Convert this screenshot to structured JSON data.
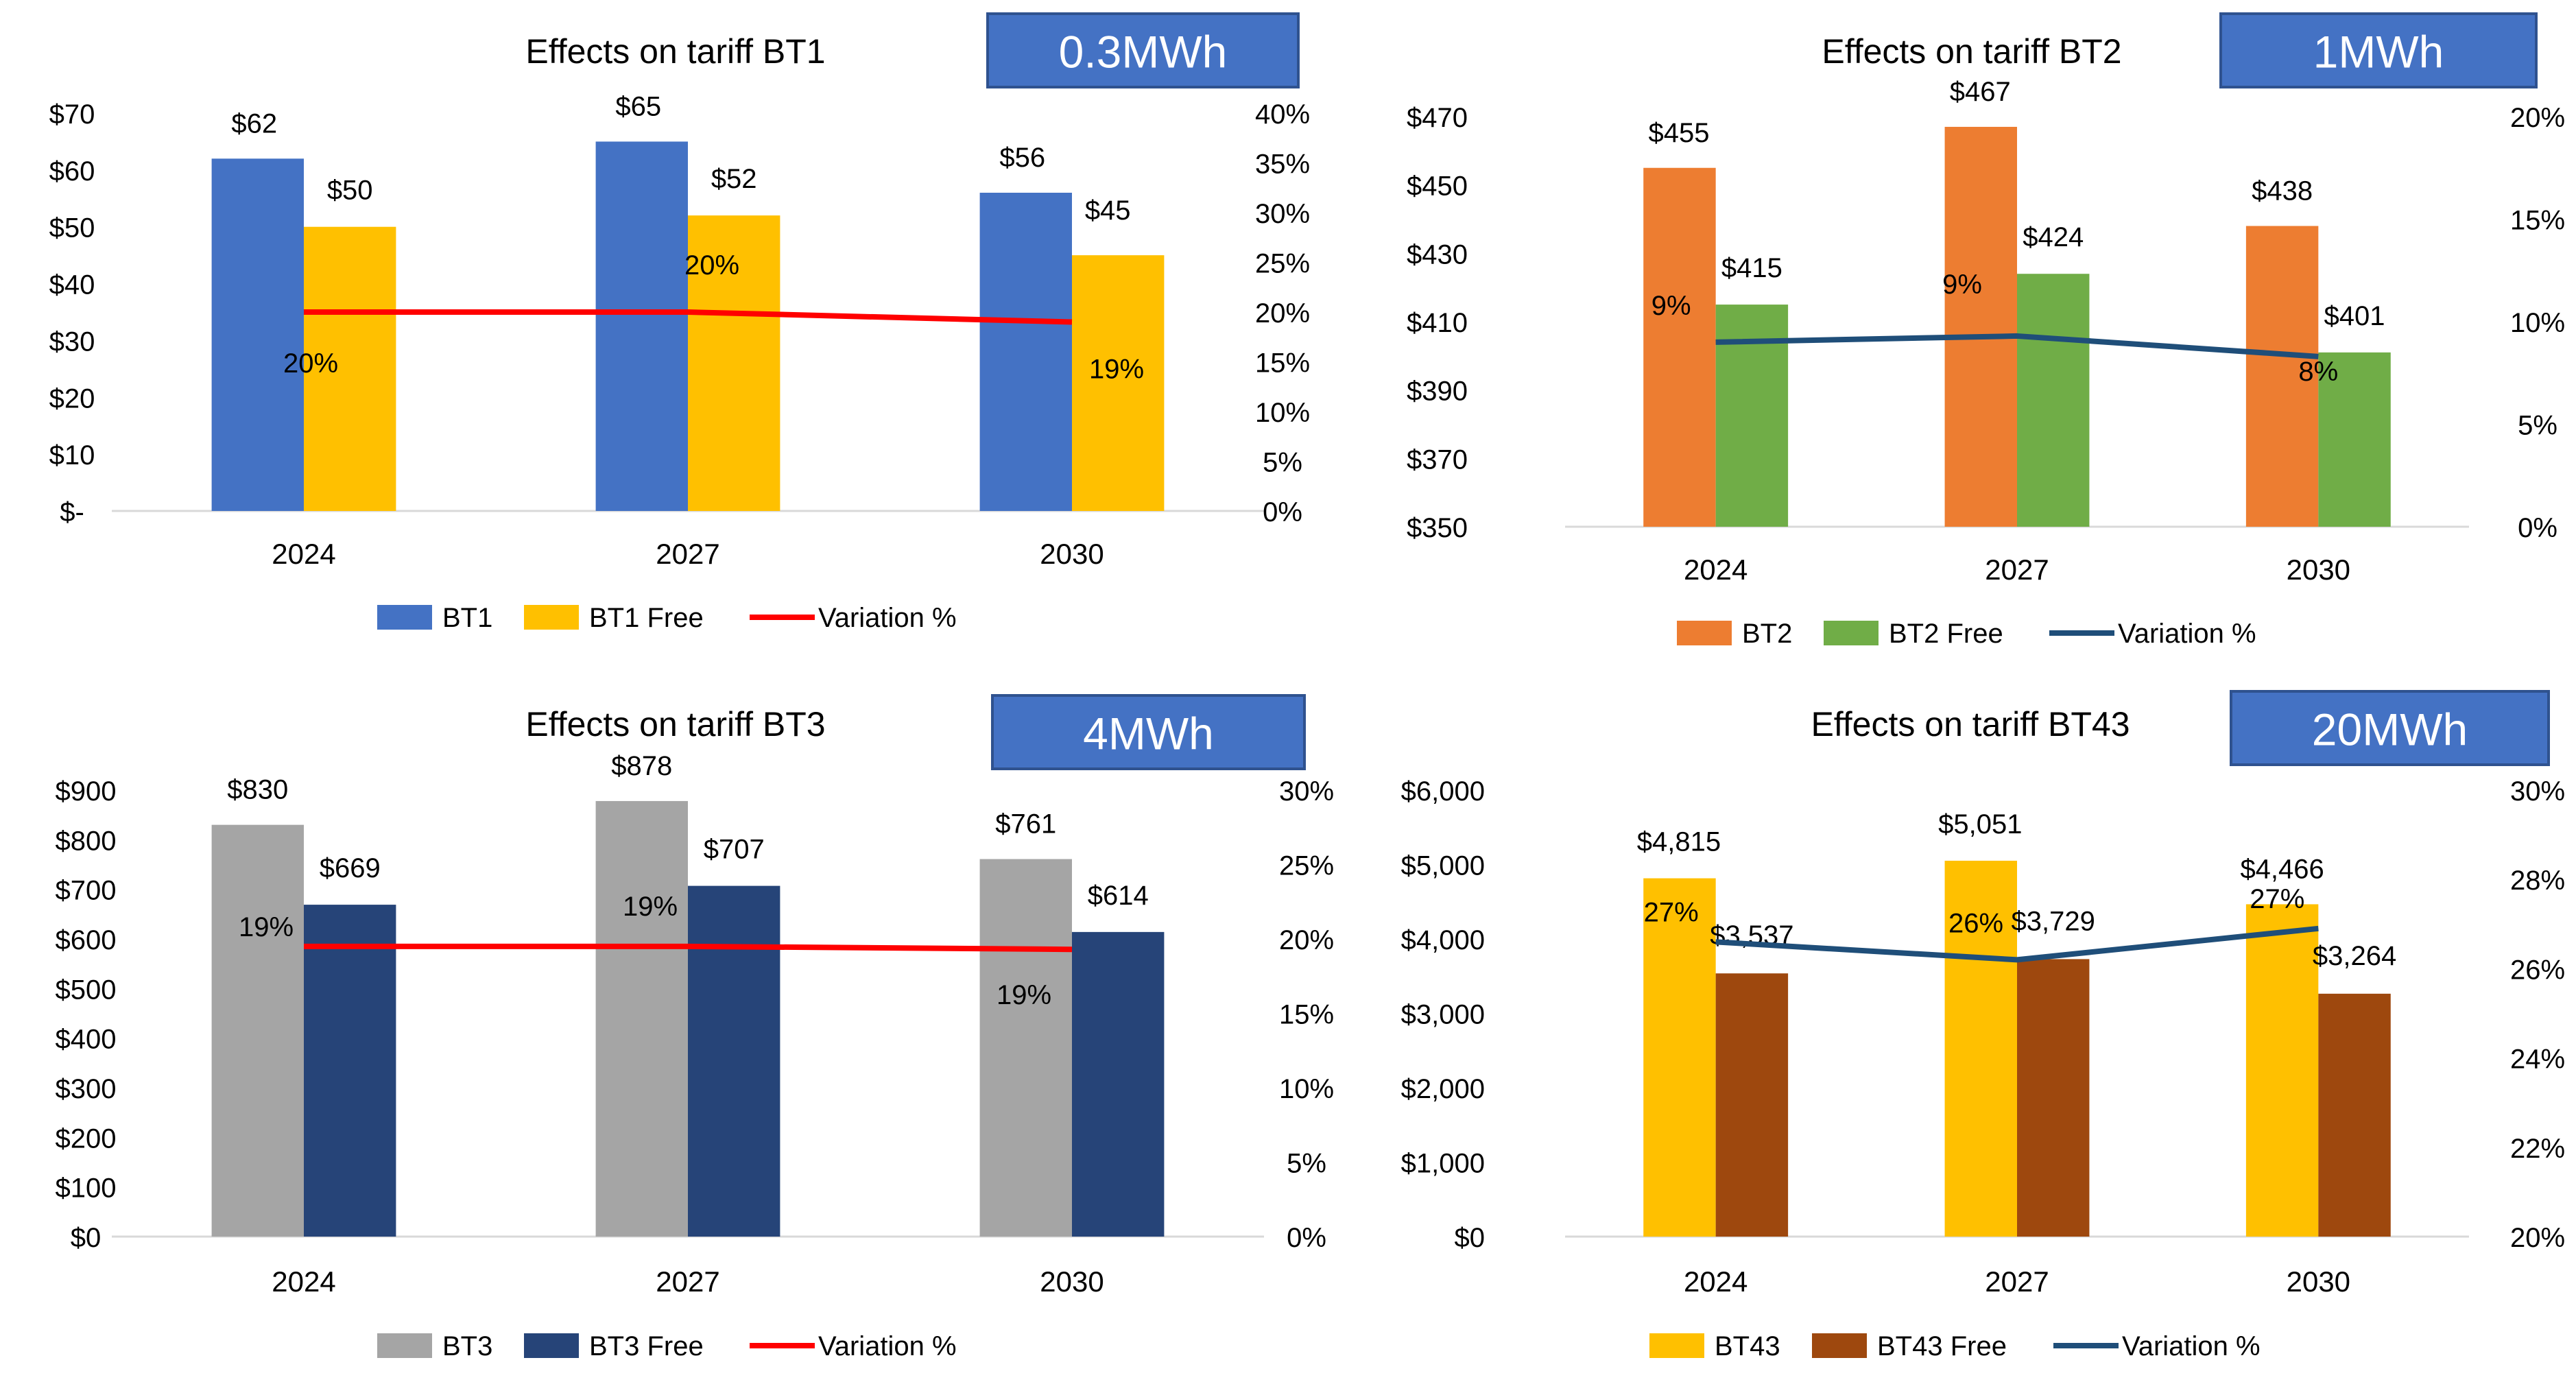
{
  "chart_data": [
    {
      "id": "bt1",
      "type": "bar",
      "title": "Effects on tariff BT1",
      "badge": "0.3MWh",
      "categories": [
        "2024",
        "2027",
        "2030"
      ],
      "series": [
        {
          "name": "BT1",
          "values": [
            62,
            65,
            56
          ],
          "labels": [
            "$62",
            "$65",
            "$56"
          ],
          "color": "#4472C4"
        },
        {
          "name": "BT1 Free",
          "values": [
            50,
            52,
            45
          ],
          "labels": [
            "$50",
            "$52",
            "$45"
          ],
          "color": "#FFC000"
        }
      ],
      "line": {
        "name": "Variation %",
        "values": [
          0.2,
          0.2,
          0.19
        ],
        "labels": [
          "20%",
          "20%",
          "19%"
        ],
        "color": "#FF0000"
      },
      "y_left": {
        "min": 0,
        "max": 70,
        "ticks": [
          0,
          10,
          20,
          30,
          40,
          50,
          60,
          70
        ],
        "tick_labels": [
          "$-",
          "$10",
          "$20",
          "$30",
          "$40",
          "$50",
          "$60",
          "$70"
        ]
      },
      "y_right": {
        "min": 0,
        "max": 0.4,
        "ticks": [
          0,
          0.05,
          0.1,
          0.15,
          0.2,
          0.25,
          0.3,
          0.35,
          0.4
        ],
        "tick_labels": [
          "0%",
          "5%",
          "10%",
          "15%",
          "20%",
          "25%",
          "30%",
          "35%",
          "40%"
        ]
      },
      "legend_position": "bottom"
    },
    {
      "id": "bt2",
      "type": "bar",
      "title": "Effects on tariff BT2",
      "badge": "1MWh",
      "categories": [
        "2024",
        "2027",
        "2030"
      ],
      "series": [
        {
          "name": "BT2",
          "values": [
            455,
            467,
            438
          ],
          "labels": [
            "$455",
            "$467",
            "$438"
          ],
          "color": "#ED7D31"
        },
        {
          "name": "BT2 Free",
          "values": [
            415,
            424,
            401
          ],
          "labels": [
            "$415",
            "$424",
            "$401"
          ],
          "color": "#70AD47"
        }
      ],
      "line": {
        "name": "Variation %",
        "values": [
          0.09,
          0.093,
          0.083
        ],
        "labels": [
          "9%",
          "9%",
          "8%"
        ],
        "color": "#1F4E79"
      },
      "y_left": {
        "min": 350,
        "max": 470,
        "ticks": [
          350,
          370,
          390,
          410,
          430,
          450,
          470
        ],
        "tick_labels": [
          "$350",
          "$370",
          "$390",
          "$410",
          "$430",
          "$450",
          "$470"
        ]
      },
      "y_right": {
        "min": 0,
        "max": 0.2,
        "ticks": [
          0,
          0.05,
          0.1,
          0.15,
          0.2
        ],
        "tick_labels": [
          "0%",
          "5%",
          "10%",
          "15%",
          "20%"
        ]
      },
      "legend_position": "bottom"
    },
    {
      "id": "bt3",
      "type": "bar",
      "title": "Effects on tariff BT3",
      "badge": "4MWh",
      "categories": [
        "2024",
        "2027",
        "2030"
      ],
      "series": [
        {
          "name": "BT3",
          "values": [
            830,
            878,
            761
          ],
          "labels": [
            "$830",
            "$878",
            "$761"
          ],
          "color": "#A5A5A5"
        },
        {
          "name": "BT3 Free",
          "values": [
            669,
            707,
            614
          ],
          "labels": [
            "$669",
            "$707",
            "$614"
          ],
          "color": "#264478"
        }
      ],
      "line": {
        "name": "Variation %",
        "values": [
          0.195,
          0.195,
          0.193
        ],
        "labels": [
          "19%",
          "19%",
          "19%"
        ],
        "color": "#FF0000"
      },
      "y_left": {
        "min": 0,
        "max": 900,
        "ticks": [
          0,
          100,
          200,
          300,
          400,
          500,
          600,
          700,
          800,
          900
        ],
        "tick_labels": [
          "$0",
          "$100",
          "$200",
          "$300",
          "$400",
          "$500",
          "$600",
          "$700",
          "$800",
          "$900"
        ]
      },
      "y_right": {
        "min": 0,
        "max": 0.3,
        "ticks": [
          0,
          0.05,
          0.1,
          0.15,
          0.2,
          0.25,
          0.3
        ],
        "tick_labels": [
          "0%",
          "5%",
          "10%",
          "15%",
          "20%",
          "25%",
          "30%"
        ]
      },
      "legend_position": "bottom"
    },
    {
      "id": "bt43",
      "type": "bar",
      "title": "Effects on tariff BT43",
      "badge": "20MWh",
      "categories": [
        "2024",
        "2027",
        "2030"
      ],
      "series": [
        {
          "name": "BT43",
          "values": [
            4815,
            5051,
            4466
          ],
          "labels": [
            "$4,815",
            "$5,051",
            "$4,466"
          ],
          "color": "#FFC000"
        },
        {
          "name": "BT43 Free",
          "values": [
            3537,
            3729,
            3264
          ],
          "labels": [
            "$3,537",
            "$3,729",
            "$3,264"
          ],
          "color": "#9E480E"
        }
      ],
      "line": {
        "name": "Variation %",
        "values": [
          0.266,
          0.262,
          0.269
        ],
        "labels": [
          "27%",
          "26%",
          "27%"
        ],
        "color": "#1F4E79"
      },
      "y_left": {
        "min": 0,
        "max": 6000,
        "ticks": [
          0,
          1000,
          2000,
          3000,
          4000,
          5000,
          6000
        ],
        "tick_labels": [
          "$0",
          "$1,000",
          "$2,000",
          "$3,000",
          "$4,000",
          "$5,000",
          "$6,000"
        ]
      },
      "y_right": {
        "min": 0.2,
        "max": 0.3,
        "ticks": [
          0.2,
          0.22,
          0.24,
          0.26,
          0.28,
          0.3
        ],
        "tick_labels": [
          "20%",
          "22%",
          "24%",
          "26%",
          "28%",
          "30%"
        ]
      },
      "legend_position": "bottom"
    }
  ]
}
